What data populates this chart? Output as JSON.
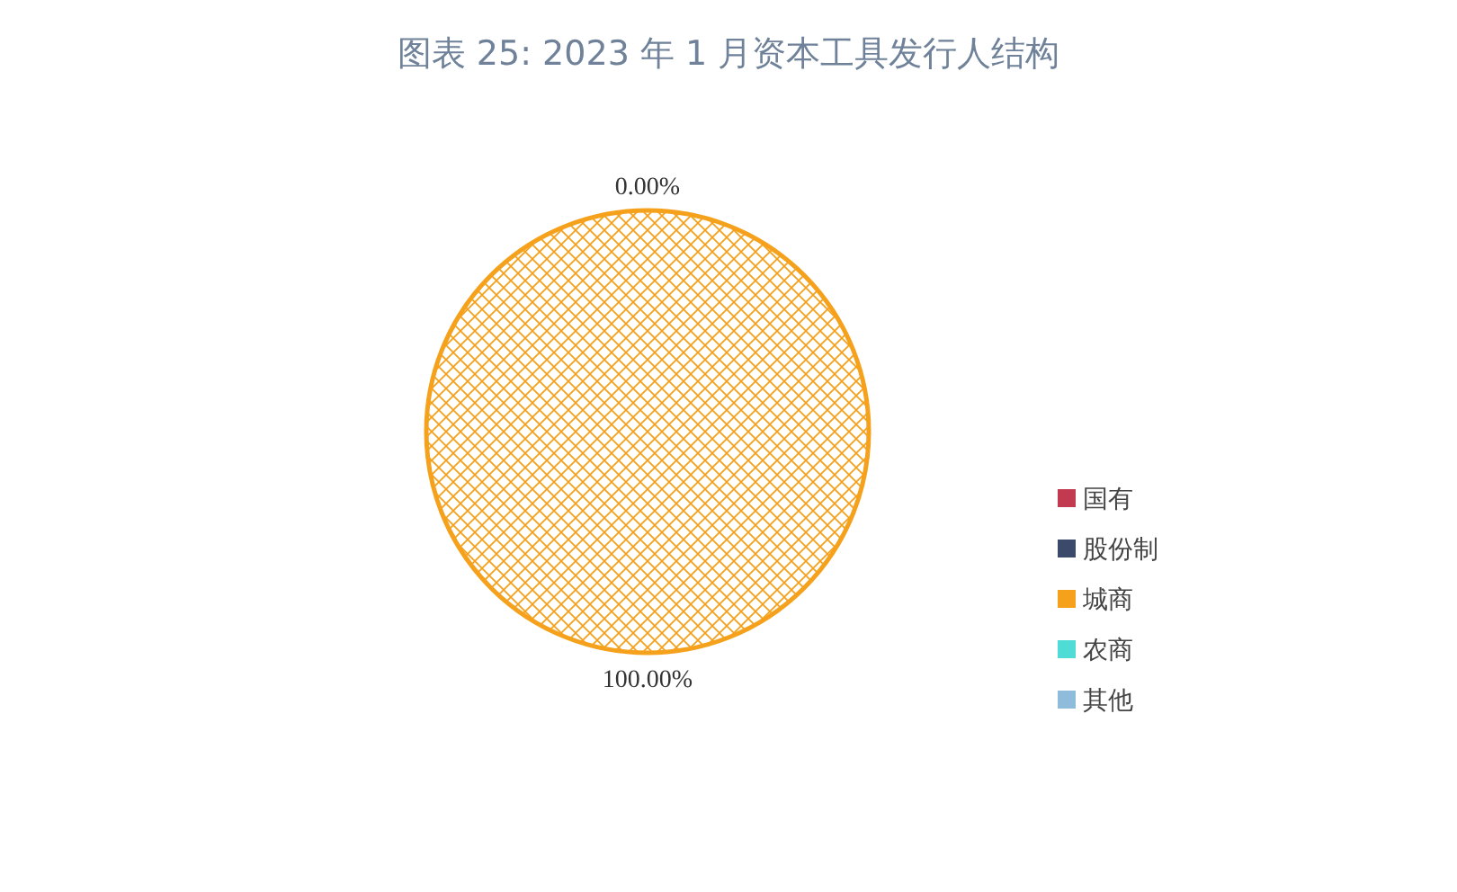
{
  "chart_data": {
    "type": "pie",
    "title": "图表 25: 2023 年 1 月资本工具发行人结构",
    "categories": [
      "国有",
      "股份制",
      "城商",
      "农商",
      "其他"
    ],
    "values": [
      0,
      0,
      100,
      0,
      0
    ],
    "colors": [
      "#c23a4f",
      "#3b4a6b",
      "#f5a11c",
      "#4fdcd6",
      "#8fbcdb"
    ],
    "value_labels": [
      null,
      null,
      "100.00%",
      null,
      "0.00%"
    ],
    "legend": "right"
  }
}
